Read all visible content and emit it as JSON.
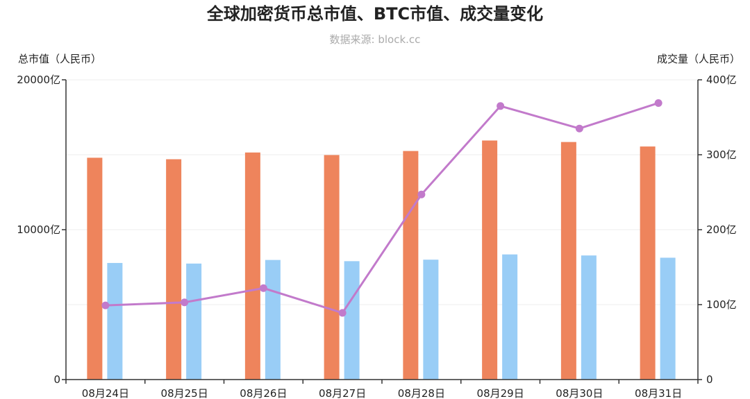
{
  "chart_data": {
    "type": "bar",
    "title": "全球加密货币总市值、BTC市值、成交量变化",
    "subtitle": "数据来源: block.cc",
    "ylabel_left": "总市值（人民币）",
    "ylabel_right": "成交量（人民币）",
    "categories": [
      "08月24日",
      "08月25日",
      "08月26日",
      "08月27日",
      "08月28日",
      "08月29日",
      "08月30日",
      "08月31日"
    ],
    "ylim_left": [
      0,
      20000
    ],
    "ylim_right": [
      0,
      400
    ],
    "yticks_left": [
      "0",
      "10000亿",
      "20000亿"
    ],
    "yticks_right": [
      "0",
      "100亿",
      "200亿",
      "300亿",
      "400亿"
    ],
    "series": [
      {
        "type": "bar",
        "axis": "left",
        "color": "#ee845c",
        "values": [
          14800,
          14700,
          15150,
          14980,
          15250,
          15950,
          15850,
          15550
        ]
      },
      {
        "type": "bar",
        "axis": "left",
        "color": "#99cdf6",
        "values": [
          7780,
          7740,
          7980,
          7900,
          8000,
          8350,
          8280,
          8130
        ]
      },
      {
        "type": "line",
        "axis": "right",
        "color": "#c27acb",
        "values": [
          99,
          103,
          122,
          89,
          247,
          365,
          335,
          369
        ]
      }
    ],
    "grid": true
  }
}
